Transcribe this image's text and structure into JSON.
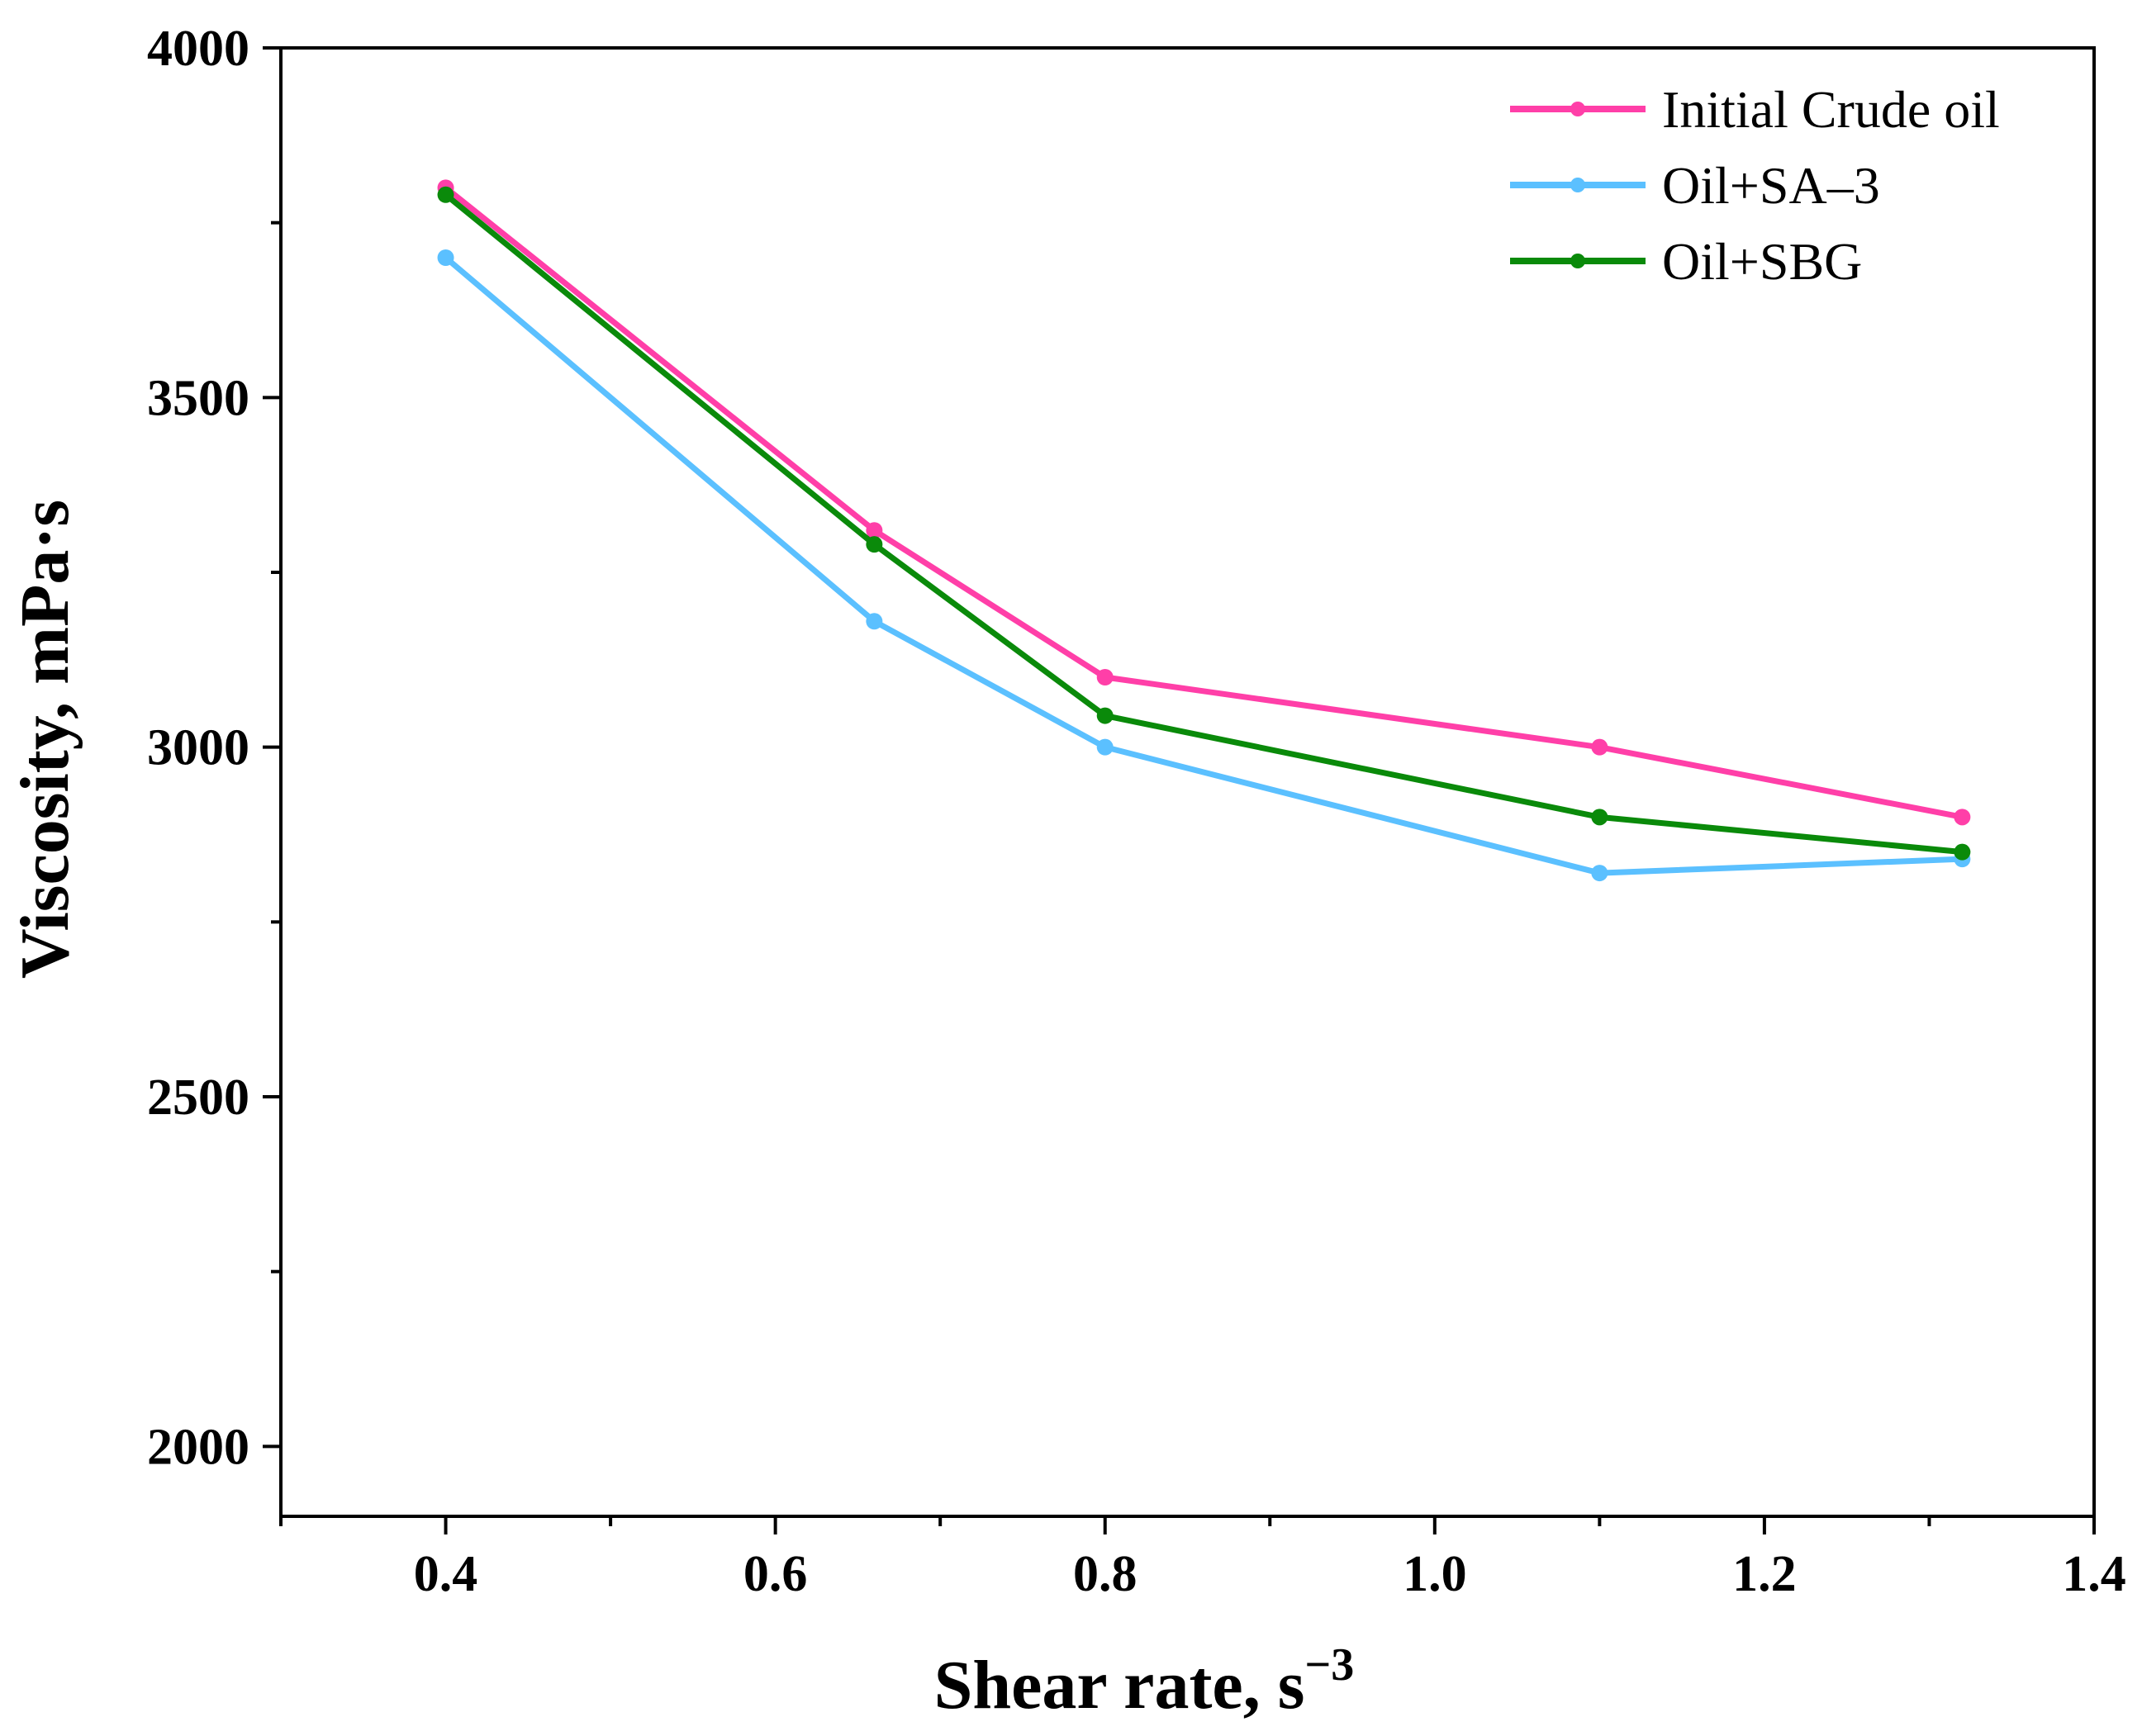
{
  "chart_data": {
    "type": "line",
    "title": "",
    "xlabel": "Shear rate, s",
    "xlabel_superscript": "−3",
    "ylabel": "Viscosity, mPa·s",
    "xlim": [
      0.3,
      1.4
    ],
    "ylim": [
      1900,
      4000
    ],
    "x_ticks": [
      0.4,
      0.6,
      0.8,
      1.0,
      1.2,
      1.4
    ],
    "x_tick_labels": [
      "0.4",
      "0.6",
      "0.8",
      "1.0",
      "1.2",
      "1.4"
    ],
    "x_minor_ticks": [
      0.3,
      0.5,
      0.7,
      0.9,
      1.1,
      1.3
    ],
    "y_ticks": [
      2000,
      2500,
      3000,
      3500,
      4000
    ],
    "y_tick_labels": [
      "2000",
      "2500",
      "3000",
      "3500",
      "4000"
    ],
    "y_minor_ticks": [
      2250,
      2750,
      3250,
      3750
    ],
    "grid": false,
    "legend_position": "top-right",
    "x": [
      0.4,
      0.66,
      0.8,
      1.1,
      1.32
    ],
    "series": [
      {
        "name": "Initial Crude oil",
        "color": "#ff3fa8",
        "values": [
          3800,
          3310,
          3100,
          3000,
          2900
        ]
      },
      {
        "name": "Oil+SA–3",
        "color": "#5bc0ff",
        "values": [
          3700,
          3180,
          3000,
          2820,
          2840
        ]
      },
      {
        "name": "Oil+SBG",
        "color": "#0a8a0a",
        "values": [
          3790,
          3290,
          3045,
          2900,
          2850
        ]
      }
    ]
  }
}
